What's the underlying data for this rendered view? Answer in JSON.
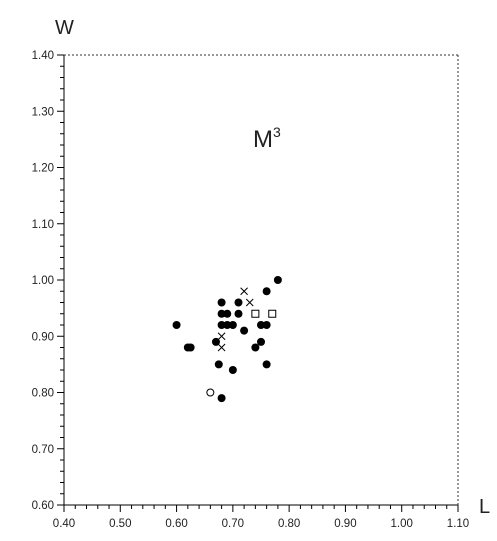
{
  "chart_data": {
    "type": "scatter",
    "xlabel": "L",
    "ylabel": "W",
    "annotation": "M",
    "annotation_superscript": "3",
    "xlim": [
      0.4,
      1.1
    ],
    "ylim": [
      0.6,
      1.4
    ],
    "x_ticks": [
      "0.40",
      "0.50",
      "0.60",
      "0.70",
      "0.80",
      "0.90",
      "1.00",
      "1.10"
    ],
    "y_ticks": [
      "0.60",
      "0.70",
      "0.80",
      "0.90",
      "1.00",
      "1.10",
      "1.20",
      "1.30",
      "1.40"
    ],
    "grid": false,
    "series": [
      {
        "marker": "filled-circle",
        "points": [
          [
            0.6,
            0.92
          ],
          [
            0.62,
            0.88
          ],
          [
            0.625,
            0.88
          ],
          [
            0.67,
            0.89
          ],
          [
            0.675,
            0.85
          ],
          [
            0.68,
            0.96
          ],
          [
            0.68,
            0.94
          ],
          [
            0.68,
            0.92
          ],
          [
            0.68,
            0.79
          ],
          [
            0.69,
            0.94
          ],
          [
            0.69,
            0.92
          ],
          [
            0.7,
            0.92
          ],
          [
            0.7,
            0.84
          ],
          [
            0.71,
            0.96
          ],
          [
            0.71,
            0.94
          ],
          [
            0.72,
            0.91
          ],
          [
            0.74,
            0.88
          ],
          [
            0.75,
            0.92
          ],
          [
            0.75,
            0.89
          ],
          [
            0.76,
            0.92
          ],
          [
            0.76,
            0.85
          ],
          [
            0.76,
            0.98
          ],
          [
            0.78,
            1.0
          ]
        ]
      },
      {
        "marker": "cross",
        "points": [
          [
            0.72,
            0.98
          ],
          [
            0.73,
            0.96
          ],
          [
            0.68,
            0.9
          ],
          [
            0.68,
            0.88
          ]
        ]
      },
      {
        "marker": "open-square",
        "points": [
          [
            0.74,
            0.94
          ],
          [
            0.77,
            0.94
          ]
        ]
      },
      {
        "marker": "open-circle",
        "points": [
          [
            0.66,
            0.8
          ]
        ]
      }
    ]
  }
}
